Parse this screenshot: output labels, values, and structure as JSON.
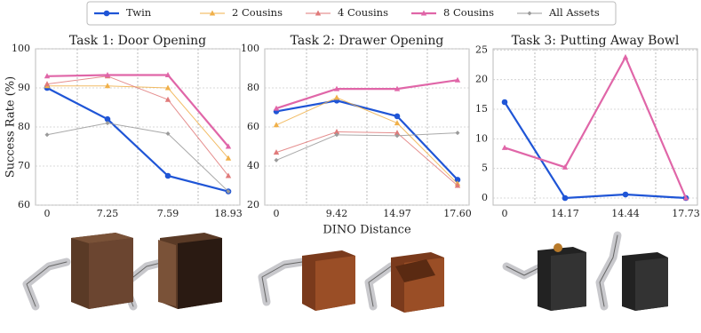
{
  "chart_data": [
    {
      "type": "line",
      "title": "Task 1: Door Opening",
      "y_label": "Success Rate (%)",
      "categories": [
        "0",
        "7.25",
        "7.59",
        "18.93"
      ],
      "ylim": [
        60,
        100
      ],
      "yticks": [
        60,
        70,
        80,
        90,
        100
      ],
      "grid": true,
      "series": [
        {
          "name": "Twin",
          "color": "#1f55d6",
          "values": [
            90,
            82,
            67.5,
            63.5
          ]
        },
        {
          "name": "2 Cousins",
          "color": "#f0b04a",
          "values": [
            90.5,
            90.5,
            90,
            72
          ]
        },
        {
          "name": "4 Cousins",
          "color": "#e07a7a",
          "values": [
            91,
            93,
            87,
            67.5
          ]
        },
        {
          "name": "8 Cousins",
          "color": "#e066a8",
          "values": [
            93,
            93.3,
            93.3,
            75
          ]
        },
        {
          "name": "All Assets",
          "color": "#9a9a9a",
          "values": [
            78,
            81,
            78.3,
            63.5
          ]
        }
      ]
    },
    {
      "type": "line",
      "title": "Task 2: Drawer Opening",
      "x_label": "DINO Distance",
      "categories": [
        "0",
        "9.42",
        "14.97",
        "17.60"
      ],
      "ylim": [
        20,
        100
      ],
      "yticks": [
        20,
        40,
        60,
        80,
        100
      ],
      "grid": true,
      "series": [
        {
          "name": "Twin",
          "color": "#1f55d6",
          "values": [
            68,
            73.5,
            65.5,
            33
          ]
        },
        {
          "name": "2 Cousins",
          "color": "#f0b04a",
          "values": [
            61,
            75,
            62,
            31
          ]
        },
        {
          "name": "4 Cousins",
          "color": "#e07a7a",
          "values": [
            47,
            57.5,
            57,
            30
          ]
        },
        {
          "name": "8 Cousins",
          "color": "#e066a8",
          "values": [
            69.5,
            79.5,
            79.5,
            84
          ]
        },
        {
          "name": "All Assets",
          "color": "#9a9a9a",
          "values": [
            43,
            56,
            55.5,
            57
          ]
        }
      ]
    },
    {
      "type": "line",
      "title": "Task 3: Putting Away Bowl",
      "categories": [
        "0",
        "14.17",
        "14.44",
        "17.73"
      ],
      "ylim": [
        -1.2,
        25.2
      ],
      "yticks": [
        0,
        5,
        10,
        15,
        20,
        25
      ],
      "grid": true,
      "series": [
        {
          "name": "Twin",
          "color": "#1f55d6",
          "values": [
            16.2,
            0,
            0.6,
            0
          ]
        },
        {
          "name": "8 Cousins",
          "color": "#e066a8",
          "values": [
            8.5,
            5.2,
            23.8,
            0
          ]
        }
      ]
    }
  ]
}
